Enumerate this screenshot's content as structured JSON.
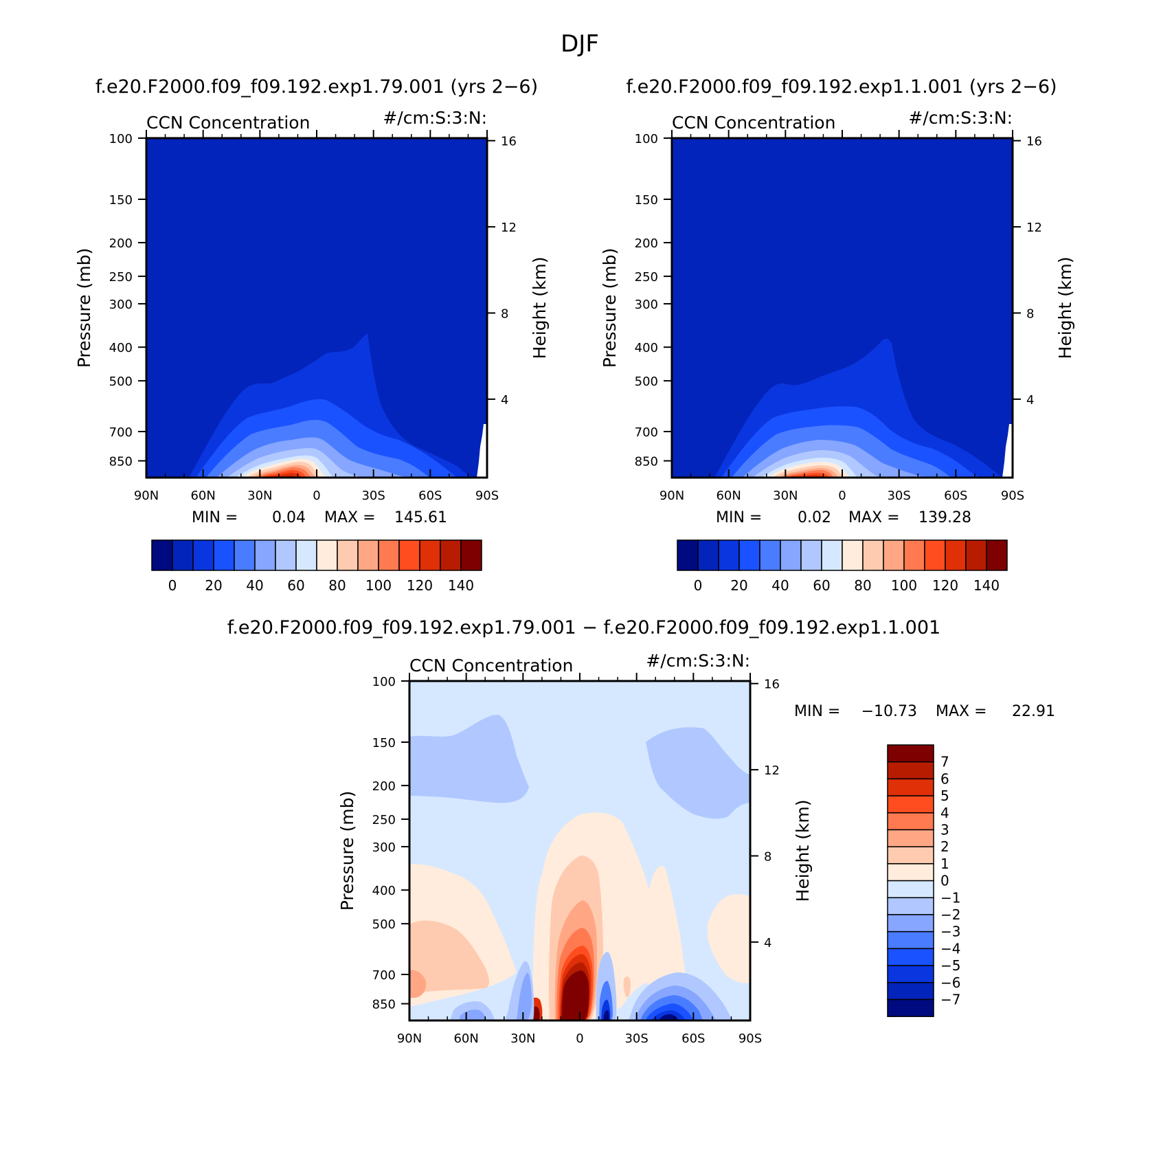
{
  "figure": {
    "title": "DJF"
  },
  "panels": [
    {
      "id": "case",
      "subtitle": "f.e20.F2000.f09_f09.192.exp1.79.001 (yrs 2−6)",
      "var_label": "CCN Concentration",
      "units_label": "#/cm:S:3:N:",
      "ylabel_left": "Pressure (mb)",
      "ylabel_right": "Height (km)",
      "min_label": "MIN =",
      "min_value": "0.04",
      "max_label": "MAX =",
      "max_value": "145.61"
    },
    {
      "id": "control",
      "subtitle": "f.e20.F2000.f09_f09.192.exp1.1.001 (yrs 2−6)",
      "var_label": "CCN Concentration",
      "units_label": "#/cm:S:3:N:",
      "ylabel_left": "Pressure (mb)",
      "ylabel_right": "Height (km)",
      "min_label": "MIN =",
      "min_value": "0.02",
      "max_label": "MAX =",
      "max_value": "139.28"
    },
    {
      "id": "diff",
      "subtitle": "f.e20.F2000.f09_f09.192.exp1.79.001 − f.e20.F2000.f09_f09.192.exp1.1.001",
      "var_label": "CCN Concentration",
      "units_label": "#/cm:S:3:N:",
      "ylabel_left": "Pressure (mb)",
      "ylabel_right": "Height (km)",
      "min_label": "MIN =",
      "min_value": "−10.73",
      "max_label": "MAX =",
      "max_value": "22.91"
    }
  ],
  "chart_data": {
    "type": "heatmap",
    "x_ticks": [
      "90N",
      "60N",
      "30N",
      "0",
      "30S",
      "60S",
      "90S"
    ],
    "y_ticks_pressure_mb": [
      100,
      150,
      200,
      250,
      300,
      400,
      500,
      700,
      850
    ],
    "y_ticks_height_km": [
      16,
      12,
      8,
      4
    ],
    "xlim_lat": [
      90,
      -90
    ],
    "ylim_pressure_mb": [
      100,
      950
    ],
    "colorbars": {
      "absolute": {
        "colors": [
          "#000a80",
          "#0324ba",
          "#0a36e0",
          "#1a52ff",
          "#4a7cff",
          "#86a6ff",
          "#b0c8ff",
          "#d6e8ff",
          "#ffecdc",
          "#ffcbb0",
          "#ffa785",
          "#ff7a50",
          "#ff4d1f",
          "#e03008",
          "#b81c00",
          "#7e0000"
        ],
        "labels": [
          "0",
          "20",
          "40",
          "60",
          "80",
          "100",
          "120",
          "140"
        ]
      },
      "difference": {
        "colors": [
          "#7e0000",
          "#b81c00",
          "#e03008",
          "#ff4d1f",
          "#ff7a50",
          "#ffa785",
          "#ffcbb0",
          "#ffecdc",
          "#d6e8ff",
          "#b0c8ff",
          "#86a6ff",
          "#4a7cff",
          "#1a52ff",
          "#0a36e0",
          "#0324ba",
          "#000a80"
        ],
        "labels": [
          "7",
          "6",
          "5",
          "4",
          "3",
          "2",
          "1",
          "0",
          "−1",
          "−2",
          "−3",
          "−4",
          "−5",
          "−6",
          "−7"
        ]
      }
    },
    "panels": [
      {
        "name": "case",
        "min": 0.04,
        "max": 145.61,
        "peak_lat": 18,
        "peak_value": 145.61
      },
      {
        "name": "control",
        "min": 0.02,
        "max": 139.28,
        "peak_lat": 18,
        "peak_value": 139.28
      },
      {
        "name": "difference",
        "min": -10.73,
        "max": 22.91,
        "peak_lat": 0,
        "peak_value": 22.91
      }
    ]
  }
}
